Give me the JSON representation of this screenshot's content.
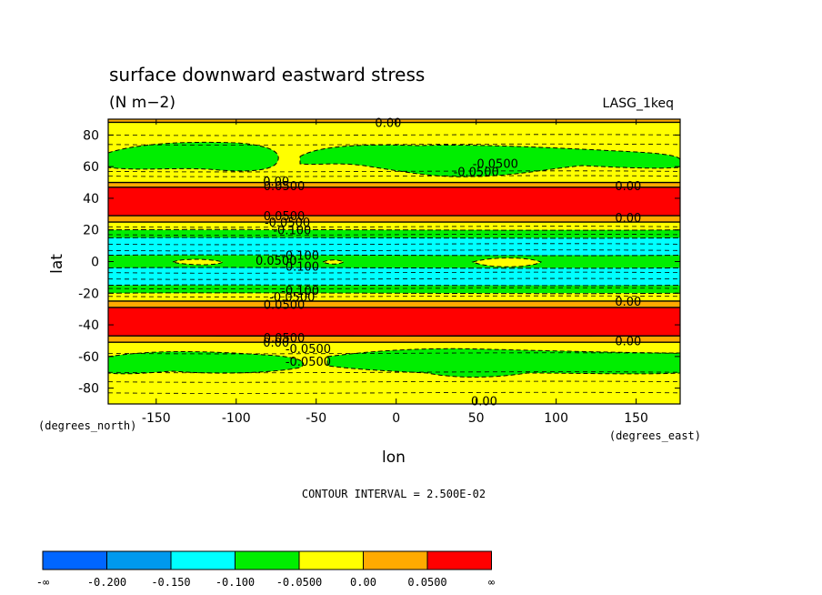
{
  "chart_data": {
    "type": "heatmap",
    "title": "surface downward eastward stress",
    "units": "(N m−2)",
    "dataset": "LASG_1keq",
    "xlabel": "lon",
    "ylabel": "lat",
    "x_units": "(degrees_east)",
    "y_units": "(degrees_north)",
    "xlim": [
      -180,
      177.5
    ],
    "ylim": [
      -90,
      90
    ],
    "x_ticks": [
      -150,
      -100,
      -50,
      0,
      50,
      100,
      150
    ],
    "y_ticks": [
      80,
      60,
      40,
      20,
      0,
      -20,
      -40,
      -60,
      -80
    ],
    "x_tick_labels": [
      "-150",
      "-100",
      "-50",
      "0",
      "50",
      "100",
      "150"
    ],
    "y_tick_labels": [
      "80",
      "60",
      "40",
      "20",
      "0",
      "-20",
      "-40",
      "-60",
      "-80"
    ],
    "contour_interval_text": "CONTOUR INTERVAL = 2.500E-02",
    "colorbar": {
      "labels": [
        "-∞",
        "-0.200",
        "-0.150",
        "-0.100",
        "-0.0500",
        "0.00",
        "0.0500",
        "∞"
      ],
      "colors": [
        "#0066ff",
        "#0099ee",
        "#00ffff",
        "#00ee00",
        "#ffff00",
        "#ffaa00",
        "#ff0000"
      ]
    },
    "zonal_bands": [
      {
        "lat_from": 90,
        "lat_to": 88,
        "range": "0.00 to 0.0500"
      },
      {
        "lat_from": 88,
        "lat_to": 50,
        "range": "-0.0500 to 0.00"
      },
      {
        "lat_from": 50,
        "lat_to": 47,
        "range": "0.00 to 0.0500"
      },
      {
        "lat_from": 47,
        "lat_to": 29,
        "range": "above 0.0500"
      },
      {
        "lat_from": 29,
        "lat_to": 25,
        "range": "0.00 to 0.0500"
      },
      {
        "lat_from": 25,
        "lat_to": 20,
        "range": "-0.0500 to 0.00"
      },
      {
        "lat_from": 20,
        "lat_to": 15,
        "range": "-0.100 to -0.0500"
      },
      {
        "lat_from": 15,
        "lat_to": 4,
        "range": "-0.150 to -0.100"
      },
      {
        "lat_from": 4,
        "lat_to": -4,
        "range": "-0.100 to -0.0500"
      },
      {
        "lat_from": -4,
        "lat_to": -15,
        "range": "-0.150 to -0.100"
      },
      {
        "lat_from": -15,
        "lat_to": -20,
        "range": "-0.100 to -0.0500"
      },
      {
        "lat_from": -20,
        "lat_to": -25,
        "range": "-0.0500 to 0.00"
      },
      {
        "lat_from": -25,
        "lat_to": -29,
        "range": "0.00 to 0.0500"
      },
      {
        "lat_from": -29,
        "lat_to": -47,
        "range": "above 0.0500"
      },
      {
        "lat_from": -47,
        "lat_to": -51,
        "range": "0.00 to 0.0500"
      },
      {
        "lat_from": -51,
        "lat_to": -90,
        "range": "-0.0500 to 0.00"
      }
    ],
    "contour_labels": [
      {
        "text": "0.00",
        "lon": -5,
        "lat": 88
      },
      {
        "text": "-0.0500",
        "lon": 62,
        "lat": 62
      },
      {
        "text": "-0.0500",
        "lon": 50,
        "lat": 57
      },
      {
        "text": "0.00",
        "lon": -75,
        "lat": 51
      },
      {
        "text": "0.0500",
        "lon": -70,
        "lat": 48
      },
      {
        "text": "0.00",
        "lon": 145,
        "lat": 48
      },
      {
        "text": "0.0500",
        "lon": -70,
        "lat": 29
      },
      {
        "text": "0.00",
        "lon": 145,
        "lat": 28
      },
      {
        "text": "-0.0500",
        "lon": -68,
        "lat": 25
      },
      {
        "text": "-0.100",
        "lon": -65,
        "lat": 20
      },
      {
        "text": "-0.100",
        "lon": -60,
        "lat": 4
      },
      {
        "text": "0.0500",
        "lon": -75,
        "lat": 1
      },
      {
        "text": "-0.100",
        "lon": -60,
        "lat": -3
      },
      {
        "text": "-0.100",
        "lon": -60,
        "lat": -18
      },
      {
        "text": "-0.0500",
        "lon": -65,
        "lat": -22
      },
      {
        "text": "0.0500",
        "lon": -70,
        "lat": -27
      },
      {
        "text": "0.00",
        "lon": 145,
        "lat": -25
      },
      {
        "text": "0.0500",
        "lon": -70,
        "lat": -48
      },
      {
        "text": "0.00",
        "lon": -75,
        "lat": -51
      },
      {
        "text": "0.00",
        "lon": 145,
        "lat": -50
      },
      {
        "text": "-0.0500",
        "lon": -55,
        "lat": -55
      },
      {
        "text": "-0.0500",
        "lon": -55,
        "lat": -63
      },
      {
        "text": "0.00",
        "lon": 55,
        "lat": -88
      }
    ]
  }
}
